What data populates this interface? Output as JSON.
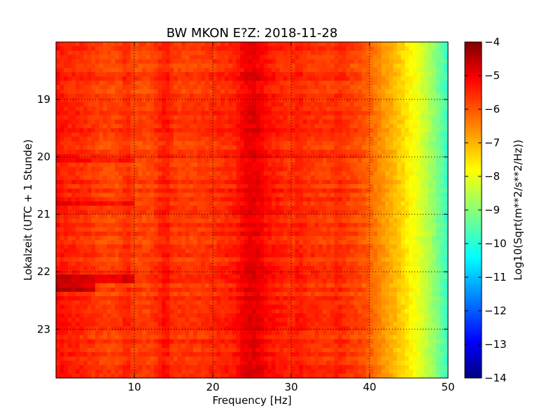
{
  "chart_data": {
    "type": "heatmap",
    "title": "BW MKON E?Z: 2018-11-28",
    "xlabel": "Frequency [Hz]",
    "ylabel": "Lokalzeit (UTC + 1 Stunde)",
    "xlim": [
      0,
      50
    ],
    "ylim": [
      23.85,
      18.0
    ],
    "x_ticks": [
      10,
      20,
      30,
      40,
      50
    ],
    "x_tick_labels": [
      "10",
      "20",
      "30",
      "40",
      "50"
    ],
    "y_ticks": [
      19,
      20,
      21,
      22,
      23
    ],
    "y_tick_labels": [
      "19",
      "20",
      "21",
      "22",
      "23"
    ],
    "grid": true,
    "colormap": "jet",
    "colorbar": {
      "label": "Log10(Sqrt(m**2/s**2/Hz))",
      "range": [
        -14,
        -4
      ],
      "ticks": [
        -4,
        -5,
        -6,
        -7,
        -8,
        -9,
        -10,
        -11,
        -12,
        -13,
        -14
      ],
      "tick_labels": [
        "−4",
        "−5",
        "−6",
        "−7",
        "−8",
        "−9",
        "−10",
        "−11",
        "−12",
        "−13",
        "−14"
      ]
    },
    "frequency_profile": [
      [
        0,
        -5.4
      ],
      [
        1,
        -5.5
      ],
      [
        2,
        -5.6
      ],
      [
        3,
        -5.6
      ],
      [
        4,
        -5.7
      ],
      [
        5,
        -5.8
      ],
      [
        6,
        -5.9
      ],
      [
        8,
        -5.9
      ],
      [
        9,
        -5.6
      ],
      [
        10,
        -5.9
      ],
      [
        12,
        -5.9
      ],
      [
        13,
        -5.7
      ],
      [
        14,
        -5.4
      ],
      [
        15,
        -5.8
      ],
      [
        18,
        -5.8
      ],
      [
        20,
        -5.7
      ],
      [
        22,
        -5.6
      ],
      [
        23,
        -5.5
      ],
      [
        24,
        -5.1
      ],
      [
        25,
        -5.0
      ],
      [
        26,
        -5.1
      ],
      [
        27,
        -5.4
      ],
      [
        29,
        -5.6
      ],
      [
        30,
        -5.7
      ],
      [
        31,
        -5.5
      ],
      [
        32,
        -5.7
      ],
      [
        35,
        -5.8
      ],
      [
        36,
        -5.6
      ],
      [
        37,
        -5.8
      ],
      [
        38,
        -5.9
      ],
      [
        39,
        -6.0
      ],
      [
        40,
        -6.2
      ],
      [
        41,
        -6.5
      ],
      [
        42,
        -6.8
      ],
      [
        43,
        -7.0
      ],
      [
        44,
        -7.3
      ],
      [
        45,
        -7.6
      ],
      [
        46,
        -7.9
      ],
      [
        47,
        -8.3
      ],
      [
        48,
        -8.7
      ],
      [
        49,
        -9.2
      ],
      [
        50,
        -9.7
      ]
    ],
    "time_events": [
      {
        "start": 20.05,
        "end": 20.1,
        "fmax": 10,
        "delta": 0.5
      },
      {
        "start": 20.78,
        "end": 20.82,
        "fmax": 10,
        "delta": 0.6
      },
      {
        "start": 22.1,
        "end": 22.15,
        "fmax": 10,
        "delta": 0.7
      },
      {
        "start": 22.27,
        "end": 22.35,
        "fmax": 5,
        "delta": 0.9
      }
    ],
    "color_stops": [
      "#000080",
      "#0000ff",
      "#00ffff",
      "#ffff00",
      "#ff0000",
      "#800000"
    ]
  }
}
